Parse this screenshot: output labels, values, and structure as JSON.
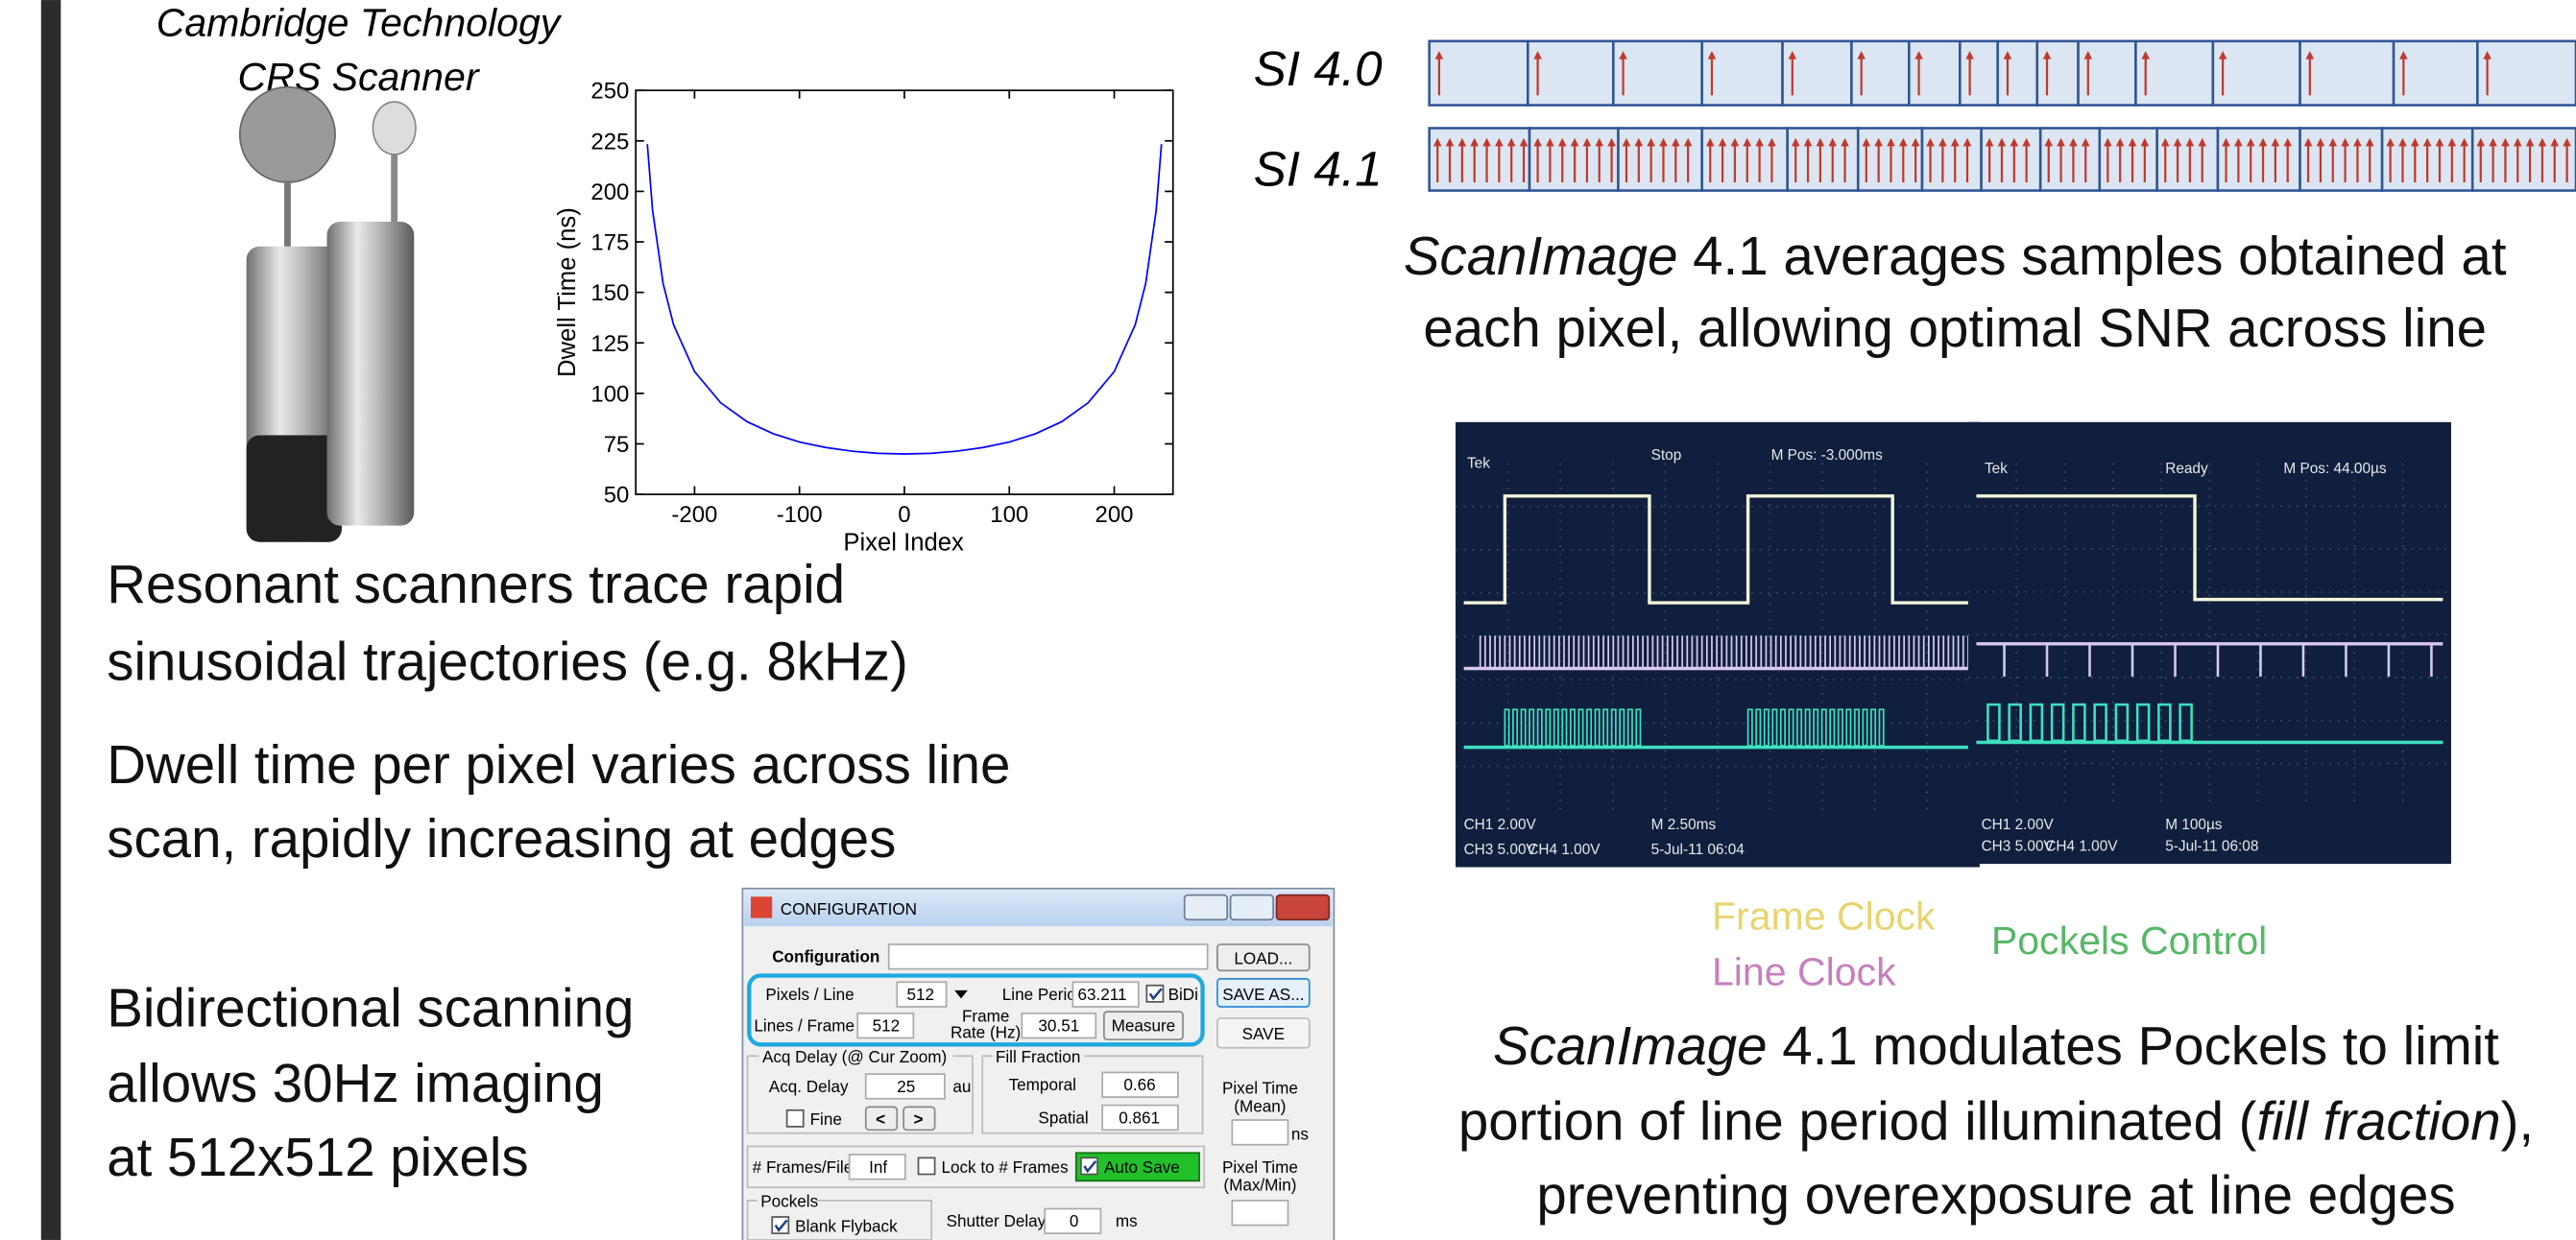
{
  "left_text": {
    "scanner_caption": [
      "Cambridge Technology",
      "CRS Scanner"
    ],
    "point1": [
      "Resonant scanners trace rapid",
      "sinusoidal trajectories (e.g. 8kHz)"
    ],
    "point2": [
      "Dwell time per pixel varies across line",
      "scan, rapidly increasing at edges"
    ],
    "point3": [
      "Bidirectional scanning",
      "allows 30Hz imaging",
      "at 512x512 pixels"
    ]
  },
  "chart_data": {
    "type": "line",
    "xlabel": "Pixel Index",
    "ylabel": "Dwell Time (ns)",
    "color": "#0000ff",
    "x": [
      -245,
      -240,
      -230,
      -220,
      -200,
      -175,
      -150,
      -125,
      -100,
      -75,
      -50,
      -25,
      0,
      25,
      50,
      75,
      100,
      125,
      150,
      175,
      200,
      220,
      230,
      240,
      245
    ],
    "values": [
      223.4,
      190.7,
      154.5,
      134.0,
      110.8,
      95.3,
      86.0,
      80.0,
      75.9,
      73.2,
      71.4,
      70.3,
      70,
      70.3,
      71.4,
      73.2,
      75.9,
      80.0,
      86.0,
      95.3,
      110.8,
      134.0,
      154.5,
      190.7,
      223.4
    ],
    "xlim": [
      -256,
      256
    ],
    "ylim": [
      50,
      250
    ],
    "xticks": [
      -200,
      -100,
      0,
      100,
      200
    ],
    "yticks": [
      50,
      75,
      100,
      125,
      150,
      175,
      200,
      225,
      250
    ]
  },
  "right_text": {
    "si40": "SI 4.0",
    "si41": "SI 4.1",
    "caption1": [
      {
        "italic": "ScanImage",
        "rest": " 4.1 averages samples obtained at"
      },
      "each pixel, allowing optimal SNR across line"
    ],
    "frame_clock": "Frame Clock",
    "line_clock": "Line Clock",
    "pockels_control": "Pockels Control",
    "caption2": [
      {
        "italic": "ScanImage",
        "rest": " 4.1 modulates Pockels to limit"
      },
      {
        "before": "portion of line period illuminated (",
        "italic": "fill fraction",
        "after": "),"
      },
      "preventing overexposure at line edges"
    ]
  },
  "scope1": {
    "brand": "Tek",
    "status": "Stop",
    "mpos": "M Pos: -3.000ms",
    "ch1": "CH1 2.00V",
    "ch3": "CH3 5.00V",
    "ch4": "CH4 1.00V",
    "time": "M 2.50ms",
    "date": "5-Jul-11 06:04"
  },
  "scope2": {
    "brand": "Tek",
    "status": "Ready",
    "mpos": "M Pos: 44.00µs",
    "ch1": "CH1 2.00V",
    "ch3": "CH3 5.00V",
    "ch4": "CH4 1.00V",
    "time": "M 100µs",
    "date": "5-Jul-11 06:08"
  },
  "config_window": {
    "title": "CONFIGURATION",
    "configuration": "Configuration",
    "load": "LOAD...",
    "pixels_line": "Pixels / Line",
    "pixels_line_value": "512",
    "line_period": "Line Period (us)",
    "line_period_value": "63.211",
    "bidi": "BiDi",
    "save_as": "SAVE AS...",
    "lines_frame": "Lines / Frame",
    "lines_frame_value": "512",
    "frame_rate": [
      "Frame",
      "Rate (Hz)"
    ],
    "frame_rate_value": "30.51",
    "measure": "Measure",
    "save": "SAVE",
    "acq_group": "Acq Delay (@ Cur Zoom)",
    "acq_delay": "Acq. Delay",
    "acq_delay_value": "25",
    "au": "au",
    "fine": "Fine",
    "prev": "<",
    "next": ">",
    "fill_group": "Fill Fraction",
    "temporal": "Temporal",
    "temporal_value": "0.66",
    "spatial": "Spatial",
    "spatial_value": "0.861",
    "pixel_time_mean": [
      "Pixel Time",
      "(Mean)"
    ],
    "ns": "ns",
    "pixel_time_maxmin": [
      "Pixel Time",
      "(Max/Min)"
    ],
    "frames_file": "# Frames/File",
    "frames_file_value": "Inf",
    "lock_frames": "Lock to # Frames",
    "auto_save": "Auto Save",
    "pockels_group": "Pockels",
    "blank_flyback": "Blank Flyback",
    "shutter_delay": "Shutter Delay",
    "shutter_delay_value": "0",
    "ms": "ms"
  }
}
